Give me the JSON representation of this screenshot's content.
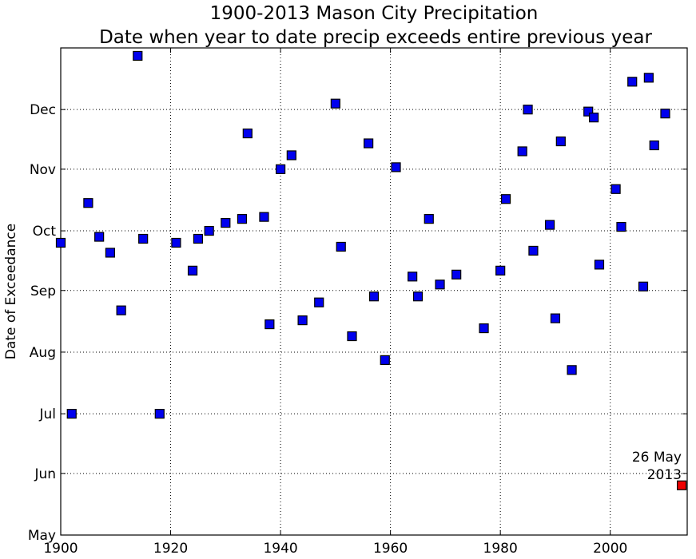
{
  "chart_data": {
    "type": "scatter",
    "title": "1900-2013 Mason City Precipitation",
    "subtitle": "Date when year to date precip exceeds entire previous year",
    "xlabel": "",
    "ylabel": "Date of Exceedance",
    "xlim": [
      1900,
      2014
    ],
    "ylim": [
      "May 1",
      "Jan 1"
    ],
    "grid": true,
    "x_ticks": [
      "1900",
      "1920",
      "1940",
      "1960",
      "1980",
      "2000"
    ],
    "y_ticks": [
      "May",
      "Jun",
      "Jul",
      "Aug",
      "Sep",
      "Oct",
      "Nov",
      "Dec"
    ],
    "marker_color": "#0000ee",
    "highlight_color": "#ee0000",
    "points": [
      {
        "x": 1900,
        "y": "Sep 25"
      },
      {
        "x": 1902,
        "y": "Jul 1"
      },
      {
        "x": 1905,
        "y": "Oct 15"
      },
      {
        "x": 1907,
        "y": "Sep 28"
      },
      {
        "x": 1909,
        "y": "Sep 20"
      },
      {
        "x": 1911,
        "y": "Aug 22"
      },
      {
        "x": 1914,
        "y": "Dec 28"
      },
      {
        "x": 1915,
        "y": "Sep 27"
      },
      {
        "x": 1918,
        "y": "Jul 1"
      },
      {
        "x": 1921,
        "y": "Sep 25"
      },
      {
        "x": 1924,
        "y": "Sep 11"
      },
      {
        "x": 1925,
        "y": "Sep 27"
      },
      {
        "x": 1927,
        "y": "Oct 1"
      },
      {
        "x": 1930,
        "y": "Oct 5"
      },
      {
        "x": 1933,
        "y": "Oct 7"
      },
      {
        "x": 1934,
        "y": "Nov 19"
      },
      {
        "x": 1937,
        "y": "Oct 8"
      },
      {
        "x": 1938,
        "y": "Aug 15"
      },
      {
        "x": 1940,
        "y": "Nov 1"
      },
      {
        "x": 1942,
        "y": "Nov 8"
      },
      {
        "x": 1944,
        "y": "Aug 17"
      },
      {
        "x": 1947,
        "y": "Aug 26"
      },
      {
        "x": 1950,
        "y": "Dec 4"
      },
      {
        "x": 1951,
        "y": "Sep 23"
      },
      {
        "x": 1953,
        "y": "Aug 9"
      },
      {
        "x": 1956,
        "y": "Nov 14"
      },
      {
        "x": 1957,
        "y": "Aug 29"
      },
      {
        "x": 1959,
        "y": "Jul 28"
      },
      {
        "x": 1961,
        "y": "Nov 2"
      },
      {
        "x": 1964,
        "y": "Sep 8"
      },
      {
        "x": 1965,
        "y": "Aug 29"
      },
      {
        "x": 1967,
        "y": "Oct 7"
      },
      {
        "x": 1969,
        "y": "Sep 4"
      },
      {
        "x": 1972,
        "y": "Sep 9"
      },
      {
        "x": 1977,
        "y": "Aug 13"
      },
      {
        "x": 1980,
        "y": "Sep 11"
      },
      {
        "x": 1981,
        "y": "Oct 17"
      },
      {
        "x": 1984,
        "y": "Nov 10"
      },
      {
        "x": 1985,
        "y": "Dec 1"
      },
      {
        "x": 1986,
        "y": "Sep 21"
      },
      {
        "x": 1989,
        "y": "Oct 4"
      },
      {
        "x": 1990,
        "y": "Aug 18"
      },
      {
        "x": 1991,
        "y": "Nov 15"
      },
      {
        "x": 1993,
        "y": "Jul 23"
      },
      {
        "x": 1996,
        "y": "Nov 30"
      },
      {
        "x": 1997,
        "y": "Nov 27"
      },
      {
        "x": 1998,
        "y": "Sep 14"
      },
      {
        "x": 2001,
        "y": "Oct 22"
      },
      {
        "x": 2002,
        "y": "Oct 3"
      },
      {
        "x": 2004,
        "y": "Dec 15"
      },
      {
        "x": 2006,
        "y": "Sep 3"
      },
      {
        "x": 2007,
        "y": "Dec 17"
      },
      {
        "x": 2008,
        "y": "Nov 13"
      },
      {
        "x": 2010,
        "y": "Nov 29"
      },
      {
        "x": 2013,
        "y": "May 26",
        "highlight": true
      }
    ],
    "annotation": {
      "line1": "26 May",
      "line2": "2013"
    }
  }
}
